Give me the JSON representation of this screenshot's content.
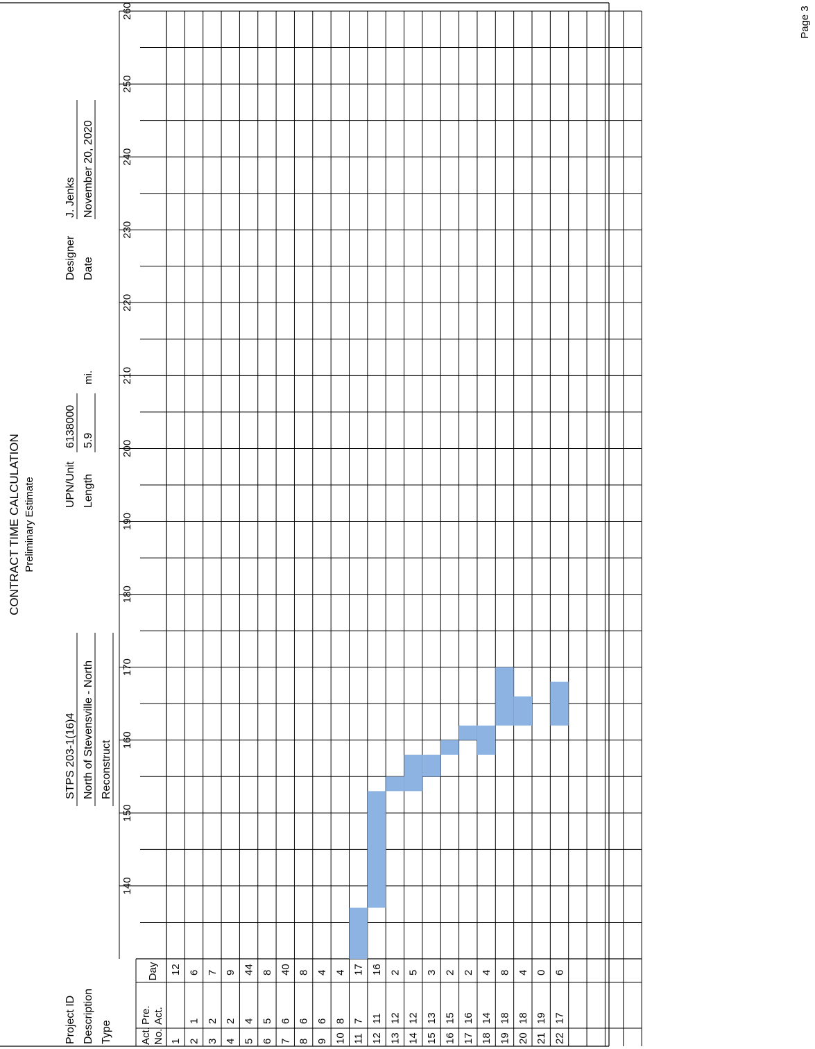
{
  "title": "CONTRACT TIME CALCULATION",
  "subtitle": "Preliminary Estimate",
  "page_label": "Page 3",
  "project": {
    "project_id_label": "Project ID",
    "project_id": "STPS 203-1(16)4",
    "description_label": "Description",
    "description": "North of Stevensville - North",
    "type_label": "Type",
    "type": "Reconstruct",
    "upn_label": "UPN/Unit",
    "upn": "6138000",
    "length_label": "Length",
    "length": "5.9",
    "length_unit": "mi.",
    "designer_label": "Designer",
    "designer": "J. Jenks",
    "date_label": "Date",
    "date": "November 20, 2020"
  },
  "table": {
    "headers": {
      "act_no_top": "Act.",
      "act_no_bottom": "No.",
      "pre_act_top": "Pre.",
      "pre_act_bottom": "Act.",
      "day": "Day"
    },
    "rows": [
      {
        "no": "1",
        "pre": "",
        "day": "12"
      },
      {
        "no": "2",
        "pre": "1",
        "day": "6"
      },
      {
        "no": "3",
        "pre": "2",
        "day": "7"
      },
      {
        "no": "4",
        "pre": "2",
        "day": "9"
      },
      {
        "no": "5",
        "pre": "4",
        "day": "44"
      },
      {
        "no": "6",
        "pre": "5",
        "day": "8"
      },
      {
        "no": "7",
        "pre": "6",
        "day": "40"
      },
      {
        "no": "8",
        "pre": "6",
        "day": "8"
      },
      {
        "no": "9",
        "pre": "6",
        "day": "4"
      },
      {
        "no": "10",
        "pre": "8",
        "day": "4"
      },
      {
        "no": "11",
        "pre": "7",
        "day": "17"
      },
      {
        "no": "12",
        "pre": "11",
        "day": "16"
      },
      {
        "no": "13",
        "pre": "12",
        "day": "2"
      },
      {
        "no": "14",
        "pre": "12",
        "day": "5"
      },
      {
        "no": "15",
        "pre": "13",
        "day": "3"
      },
      {
        "no": "16",
        "pre": "15",
        "day": "2"
      },
      {
        "no": "17",
        "pre": "16",
        "day": "2"
      },
      {
        "no": "18",
        "pre": "14",
        "day": "4"
      },
      {
        "no": "19",
        "pre": "18",
        "day": "8"
      },
      {
        "no": "20",
        "pre": "18",
        "day": "4"
      },
      {
        "no": "21",
        "pre": "19",
        "day": "0"
      },
      {
        "no": "22",
        "pre": "17",
        "day": "6"
      }
    ],
    "blank_rows": 4
  },
  "chart_data": {
    "type": "bar",
    "orientation": "gantt",
    "axis_ticks": [
      140,
      150,
      160,
      170,
      180,
      190,
      200,
      210,
      220,
      230,
      240,
      250,
      260
    ],
    "xlim": [
      130,
      260
    ],
    "grid": true,
    "bar_color": "#8db3e2",
    "bars": [
      {
        "activity": "11",
        "start": 120,
        "end": 137
      },
      {
        "activity": "12",
        "start": 137,
        "end": 153
      },
      {
        "activity": "13",
        "start": 153,
        "end": 155
      },
      {
        "activity": "14",
        "start": 153,
        "end": 158
      },
      {
        "activity": "15",
        "start": 155,
        "end": 158
      },
      {
        "activity": "16",
        "start": 158,
        "end": 160
      },
      {
        "activity": "17",
        "start": 160,
        "end": 162
      },
      {
        "activity": "18",
        "start": 158,
        "end": 162
      },
      {
        "activity": "19",
        "start": 162,
        "end": 170
      },
      {
        "activity": "20",
        "start": 162,
        "end": 166
      },
      {
        "activity": "21",
        "start": 170,
        "end": 170
      },
      {
        "activity": "22",
        "start": 162,
        "end": 168
      }
    ]
  }
}
